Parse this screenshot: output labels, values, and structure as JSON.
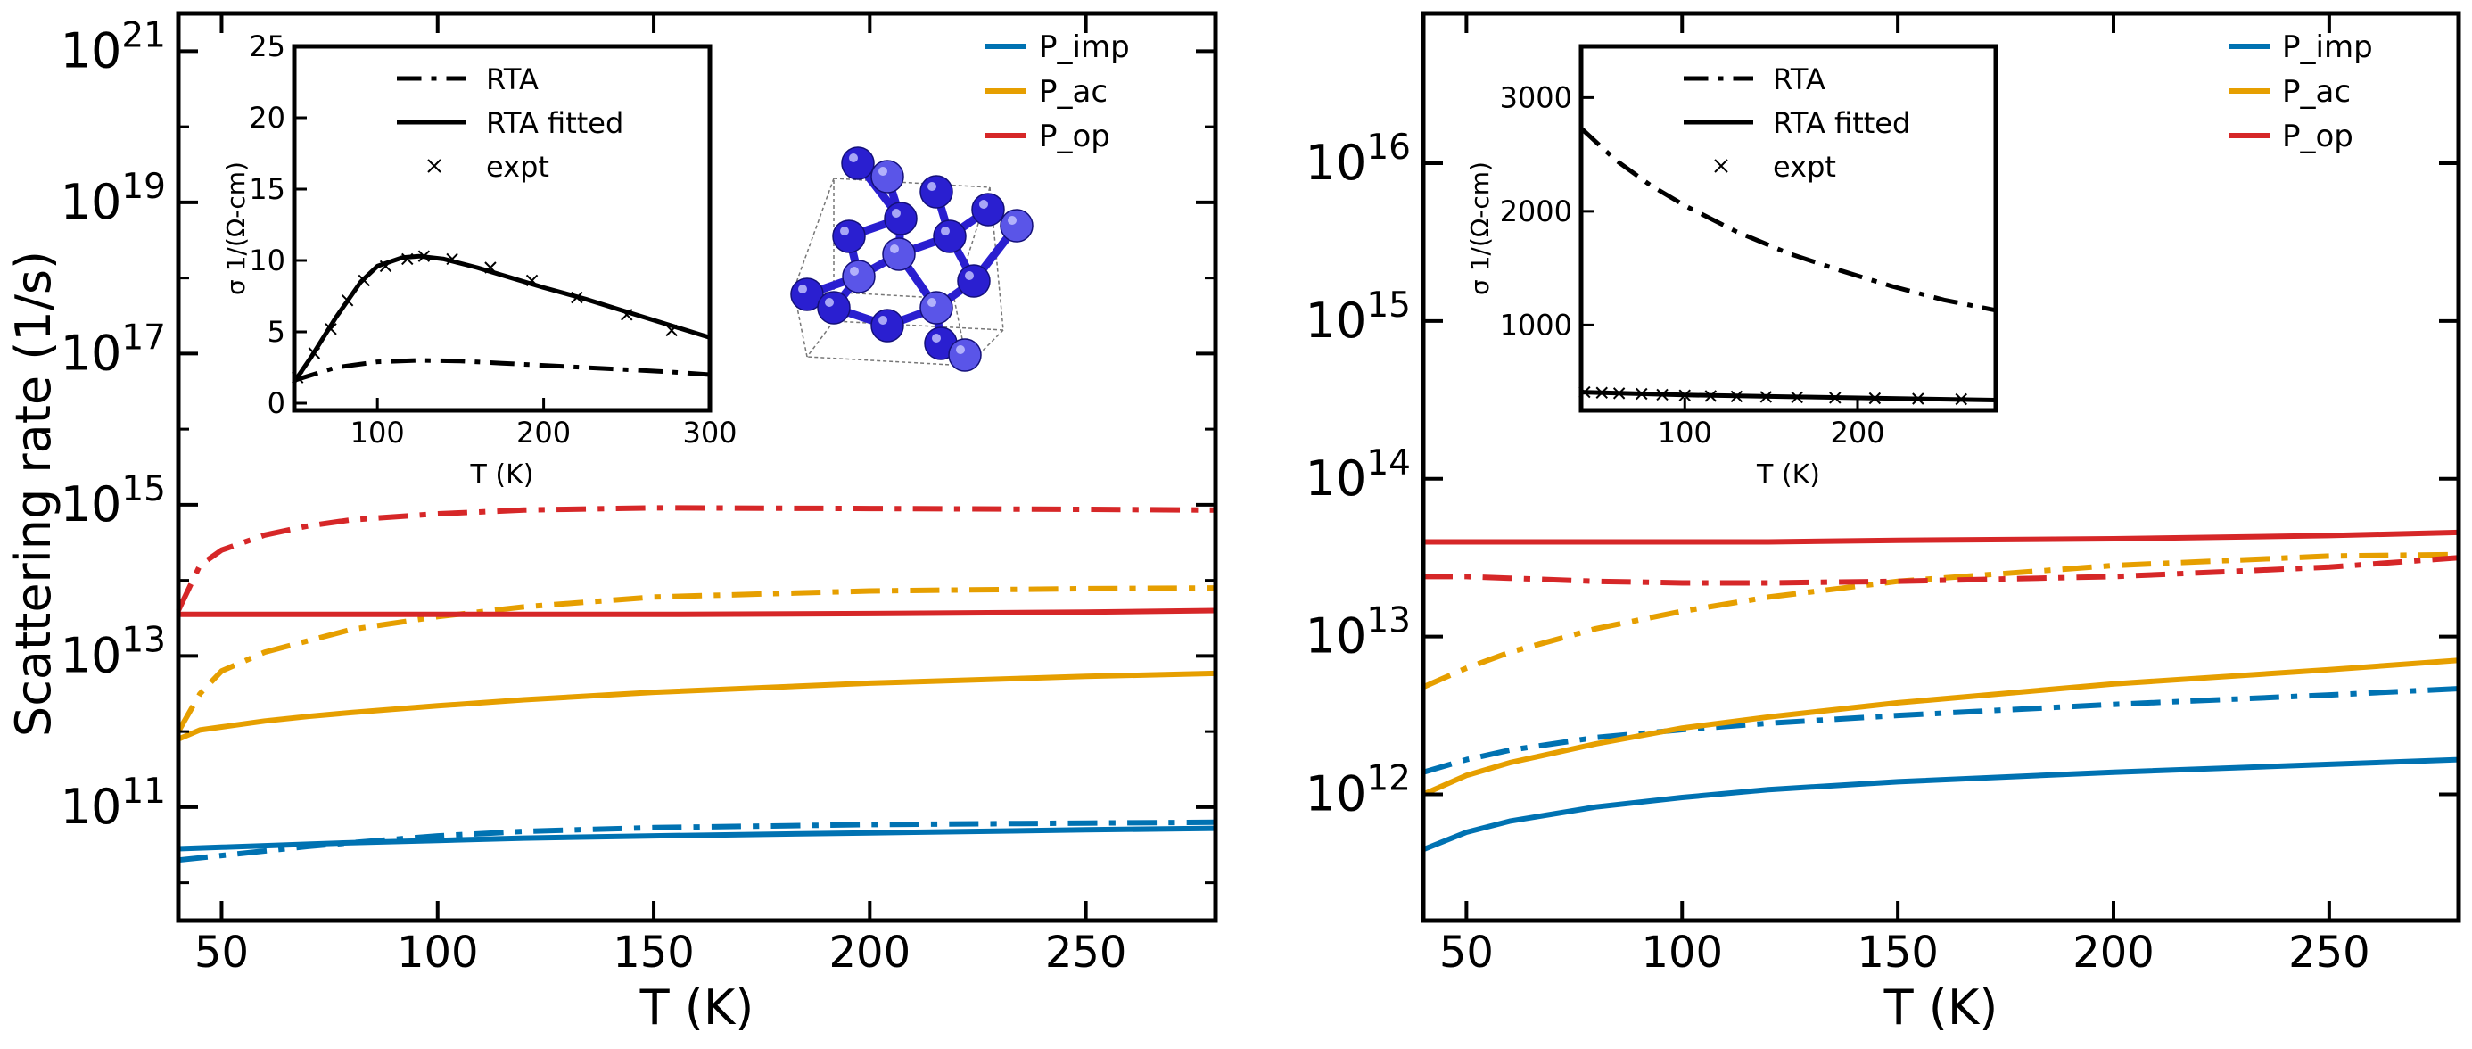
{
  "colors": {
    "imp": "#0072b2",
    "ac": "#e69f00",
    "op": "#d62728",
    "ink": "#000000",
    "crystal": "#2a1fd0",
    "crystal_light": "#5a55e8"
  },
  "chart_data": [
    {
      "type": "line",
      "panel": "left",
      "xlabel": "T (K)",
      "ylabel": "Scattering rate (1/s)",
      "xlim": [
        40,
        280
      ],
      "ylim_log10": [
        9.5,
        21.5
      ],
      "yscale": "log",
      "xticks": [
        50,
        100,
        150,
        200,
        250
      ],
      "xtick_labels": [
        "50",
        "100",
        "150",
        "200",
        "250"
      ],
      "yticks_log10": [
        11,
        13,
        15,
        17,
        19,
        21
      ],
      "ytick_labels": [
        "11",
        "13",
        "15",
        "17",
        "19",
        "21"
      ],
      "ytick_base": "10",
      "legend_position": "top-right",
      "legend": [
        {
          "label": "P_imp",
          "color_key": "imp"
        },
        {
          "label": "P_ac",
          "color_key": "ac"
        },
        {
          "label": "P_op",
          "color_key": "op"
        }
      ],
      "x": [
        40,
        45,
        50,
        60,
        70,
        80,
        100,
        120,
        150,
        200,
        250,
        280
      ],
      "series": [
        {
          "color_key": "imp",
          "style": "solid",
          "log10_values": [
            10.45,
            10.46,
            10.47,
            10.49,
            10.51,
            10.53,
            10.56,
            10.59,
            10.62,
            10.66,
            10.7,
            10.72
          ]
        },
        {
          "color_key": "imp",
          "style": "dashdot",
          "log10_values": [
            10.3,
            10.33,
            10.36,
            10.42,
            10.48,
            10.53,
            10.62,
            10.68,
            10.73,
            10.77,
            10.79,
            10.8
          ]
        },
        {
          "color_key": "ac",
          "style": "solid",
          "log10_values": [
            11.9,
            12.02,
            12.06,
            12.14,
            12.2,
            12.25,
            12.34,
            12.42,
            12.52,
            12.64,
            12.73,
            12.77
          ]
        },
        {
          "color_key": "ac",
          "style": "dashdot",
          "log10_values": [
            12.0,
            12.5,
            12.8,
            13.05,
            13.2,
            13.35,
            13.52,
            13.65,
            13.78,
            13.86,
            13.89,
            13.9
          ]
        },
        {
          "color_key": "op",
          "style": "solid",
          "log10_values": [
            13.55,
            13.55,
            13.55,
            13.55,
            13.55,
            13.55,
            13.55,
            13.55,
            13.55,
            13.56,
            13.58,
            13.6
          ]
        },
        {
          "color_key": "op",
          "style": "dashdot",
          "log10_values": [
            13.6,
            14.2,
            14.4,
            14.6,
            14.72,
            14.8,
            14.88,
            14.93,
            14.96,
            14.95,
            14.94,
            14.93
          ]
        }
      ]
    },
    {
      "type": "line",
      "panel": "left-inset",
      "xlabel": "T (K)",
      "ylabel": "σ 1/(Ω-cm)",
      "xlim": [
        50,
        300
      ],
      "ylim": [
        -0.5,
        25
      ],
      "xticks": [
        100,
        200,
        300
      ],
      "xtick_labels": [
        "100",
        "200",
        "300"
      ],
      "yticks": [
        0,
        5,
        10,
        15,
        20,
        25
      ],
      "ytick_labels": [
        "0",
        "5",
        "10",
        "15",
        "20",
        "25"
      ],
      "legend_position": "top-center",
      "legend": [
        {
          "label": "RTA",
          "style": "dashdot"
        },
        {
          "label": "RTA fitted",
          "style": "solid"
        },
        {
          "label": "expt",
          "style": "marker"
        }
      ],
      "series": [
        {
          "name": "RTA",
          "style": "dashdot",
          "x": [
            50,
            75,
            100,
            125,
            150,
            175,
            200,
            225,
            250,
            275,
            300
          ],
          "values": [
            1.6,
            2.5,
            2.9,
            3.0,
            2.95,
            2.8,
            2.65,
            2.5,
            2.35,
            2.2,
            2.0
          ]
        },
        {
          "name": "RTA fitted",
          "style": "solid",
          "x": [
            50,
            60,
            75,
            90,
            100,
            115,
            125,
            140,
            160,
            180,
            200,
            225,
            250,
            275,
            300
          ],
          "values": [
            1.5,
            3.2,
            6.0,
            8.5,
            9.6,
            10.2,
            10.3,
            10.1,
            9.5,
            8.8,
            8.1,
            7.3,
            6.4,
            5.5,
            4.6
          ]
        },
        {
          "name": "expt",
          "style": "marker",
          "x": [
            52,
            62,
            72,
            82,
            92,
            105,
            118,
            128,
            145,
            168,
            193,
            220,
            250,
            277
          ],
          "values": [
            1.8,
            3.5,
            5.2,
            7.2,
            8.6,
            9.6,
            10.1,
            10.3,
            10.1,
            9.5,
            8.6,
            7.4,
            6.2,
            5.1
          ]
        }
      ]
    },
    {
      "type": "line",
      "panel": "right",
      "xlabel": "T (K)",
      "xlim": [
        40,
        280
      ],
      "ylim_log10": [
        11.2,
        16.95
      ],
      "yscale": "log",
      "xticks": [
        50,
        100,
        150,
        200,
        250
      ],
      "xtick_labels": [
        "50",
        "100",
        "150",
        "200",
        "250"
      ],
      "yticks_log10": [
        12,
        13,
        14,
        15,
        16
      ],
      "ytick_labels": [
        "12",
        "13",
        "14",
        "15",
        "16"
      ],
      "ytick_base": "10",
      "legend_position": "top-right",
      "legend": [
        {
          "label": "P_imp",
          "color_key": "imp"
        },
        {
          "label": "P_ac",
          "color_key": "ac"
        },
        {
          "label": "P_op",
          "color_key": "op"
        }
      ],
      "x": [
        40,
        50,
        60,
        80,
        100,
        120,
        150,
        200,
        250,
        280
      ],
      "series": [
        {
          "color_key": "imp",
          "style": "solid",
          "log10_values": [
            11.65,
            11.76,
            11.83,
            11.92,
            11.98,
            12.03,
            12.08,
            12.14,
            12.19,
            12.22
          ]
        },
        {
          "color_key": "imp",
          "style": "dashdot",
          "log10_values": [
            12.14,
            12.22,
            12.28,
            12.36,
            12.41,
            12.45,
            12.5,
            12.57,
            12.63,
            12.67
          ]
        },
        {
          "color_key": "ac",
          "style": "solid",
          "log10_values": [
            12.0,
            12.12,
            12.2,
            12.32,
            12.42,
            12.49,
            12.58,
            12.7,
            12.79,
            12.85
          ]
        },
        {
          "color_key": "ac",
          "style": "dashdot",
          "log10_values": [
            12.68,
            12.8,
            12.9,
            13.05,
            13.16,
            13.25,
            13.35,
            13.45,
            13.51,
            13.52
          ]
        },
        {
          "color_key": "op",
          "style": "solid",
          "log10_values": [
            13.6,
            13.6,
            13.6,
            13.6,
            13.6,
            13.6,
            13.61,
            13.62,
            13.64,
            13.66
          ]
        },
        {
          "color_key": "op",
          "style": "dashdot",
          "log10_values": [
            13.38,
            13.38,
            13.37,
            13.35,
            13.34,
            13.34,
            13.35,
            13.38,
            13.44,
            13.5
          ]
        }
      ]
    },
    {
      "type": "line",
      "panel": "right-inset",
      "xlabel": "T (K)",
      "ylabel": "σ 1/(Ω-cm)",
      "xlim": [
        40,
        280
      ],
      "ylim": [
        250,
        3450
      ],
      "xticks": [
        100,
        200
      ],
      "xtick_labels": [
        "100",
        "200"
      ],
      "yticks": [
        1000,
        2000,
        3000
      ],
      "ytick_labels": [
        "1000",
        "2000",
        "3000"
      ],
      "legend_position": "top-center",
      "legend": [
        {
          "label": "RTA",
          "style": "dashdot"
        },
        {
          "label": "RTA fitted",
          "style": "solid"
        },
        {
          "label": "expt",
          "style": "marker"
        }
      ],
      "series": [
        {
          "name": "RTA",
          "style": "dashdot",
          "x": [
            40,
            60,
            80,
            100,
            130,
            160,
            190,
            220,
            250,
            280
          ],
          "values": [
            2730,
            2450,
            2230,
            2050,
            1820,
            1630,
            1480,
            1340,
            1220,
            1130
          ]
        },
        {
          "name": "RTA fitted",
          "style": "solid",
          "x": [
            40,
            100,
            160,
            220,
            280
          ],
          "values": [
            410,
            385,
            370,
            355,
            340
          ]
        },
        {
          "name": "expt",
          "style": "marker",
          "x": [
            42,
            52,
            62,
            75,
            87,
            100,
            115,
            130,
            147,
            165,
            187,
            210,
            235,
            260
          ],
          "values": [
            410,
            405,
            400,
            395,
            388,
            382,
            376,
            372,
            368,
            364,
            360,
            356,
            352,
            348
          ]
        }
      ]
    }
  ]
}
